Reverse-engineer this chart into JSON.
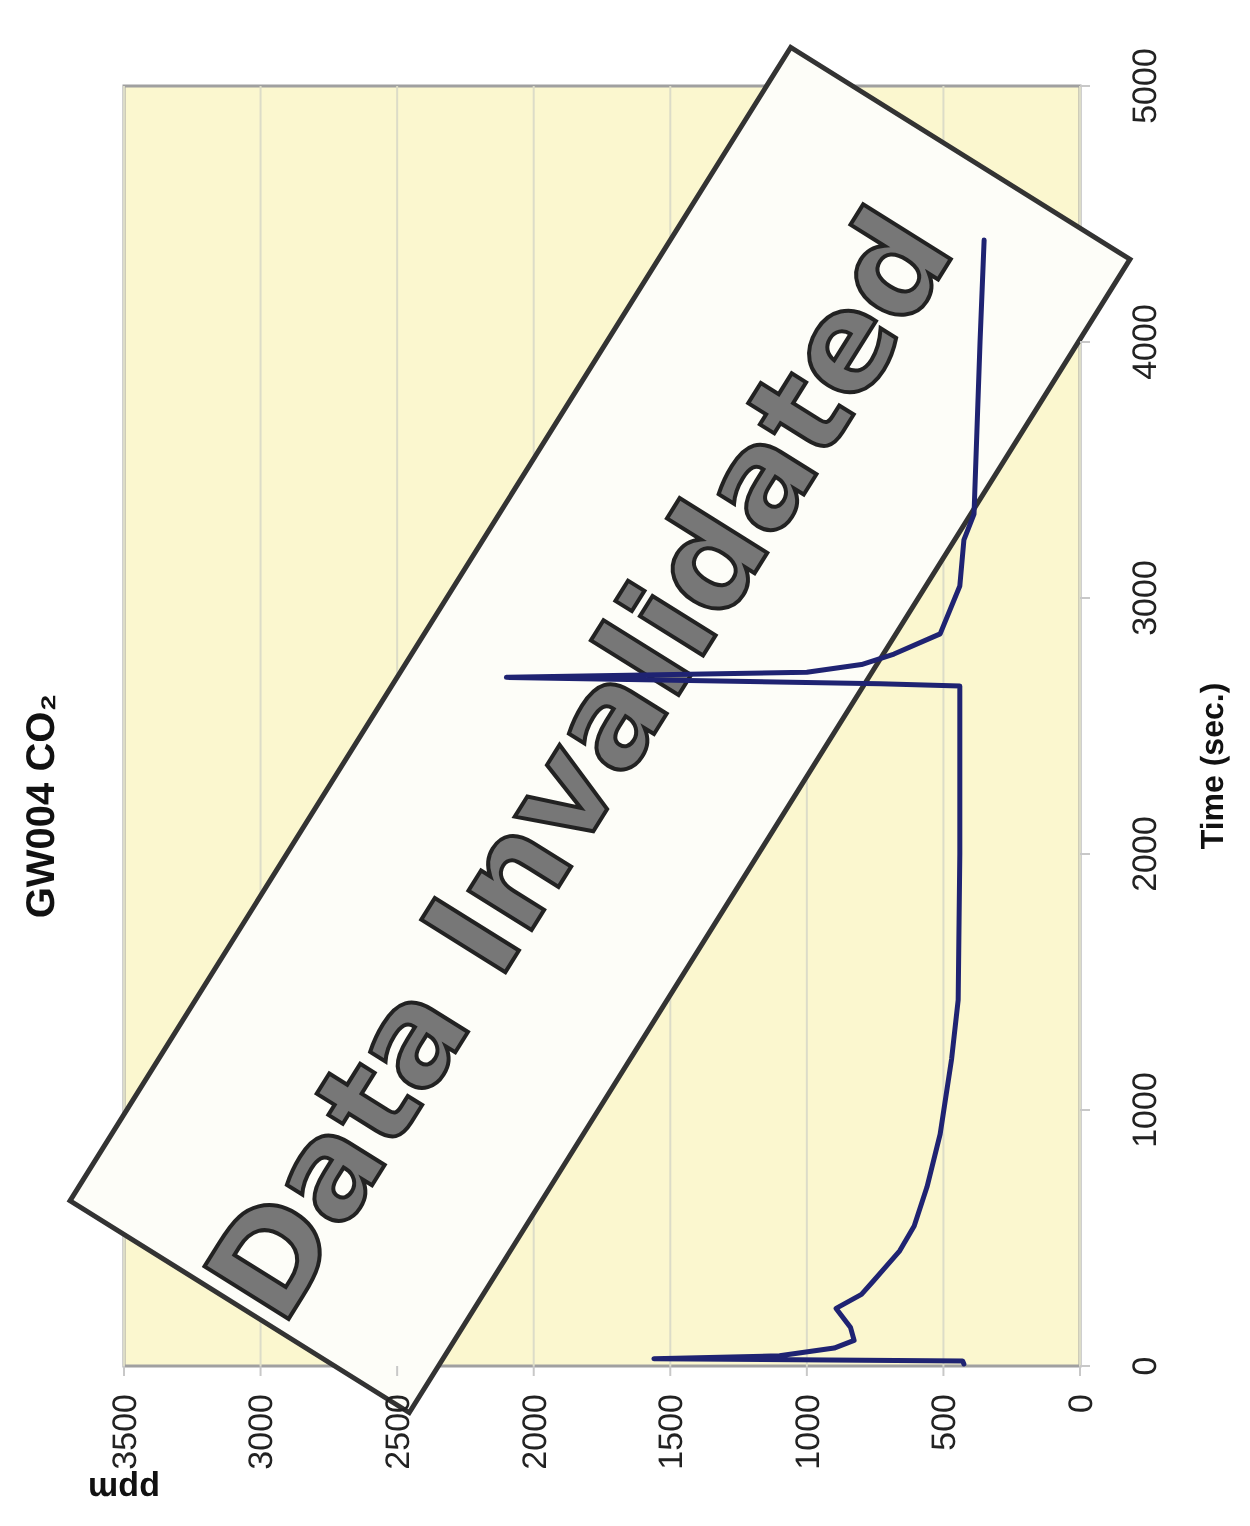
{
  "chart_data": {
    "type": "line",
    "title": "GW004 CO₂",
    "xlabel": "ppm",
    "ylabel": "Time (sec.)",
    "series": [
      {
        "color": "#1f2372",
        "x": [
          425,
          430,
          1560,
          1100,
          900,
          827,
          840,
          893,
          800,
          754,
          660,
          607,
          560,
          512,
          470,
          446,
          440,
          440,
          732,
          2100,
          1000,
          800,
          681,
          512,
          440,
          425,
          388,
          366,
          351
        ],
        "values": [
          8,
          20,
          28,
          40,
          70,
          100,
          150,
          225,
          280,
          335,
          450,
          547,
          700,
          906,
          1200,
          1430,
          2000,
          2656,
          2665,
          2690,
          2710,
          2740,
          2781,
          2860,
          3047,
          3227,
          3328,
          4000,
          4398
        ]
      }
    ],
    "xlim": [
      3500,
      0
    ],
    "xticks": [
      0,
      500,
      1000,
      1500,
      2000,
      2500,
      3000,
      3500
    ],
    "ylim": [
      0,
      5000
    ],
    "yticks": [
      0,
      1000,
      2000,
      3000,
      4000,
      5000
    ],
    "grid": "x",
    "marker": "none",
    "line_style": "solid",
    "annotations": [
      "Data Invalidated"
    ]
  }
}
